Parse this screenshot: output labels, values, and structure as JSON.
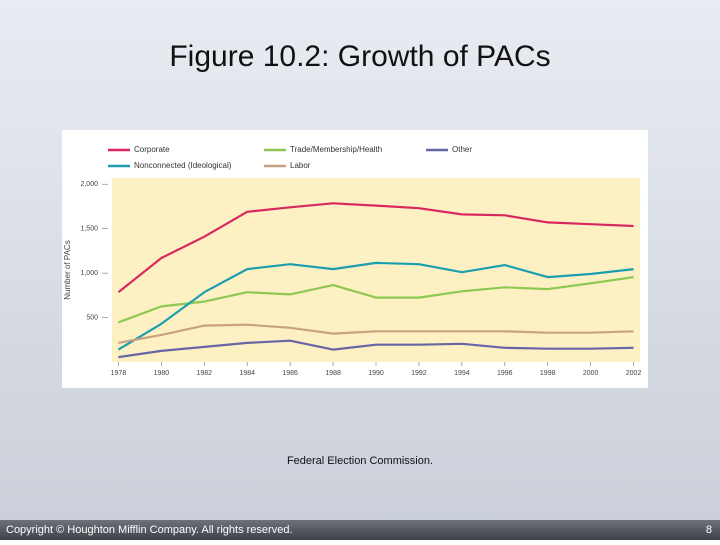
{
  "slide": {
    "title": "Figure 10.2: Growth of PACs",
    "source": "Federal Election Commission.",
    "footer": "Copyright © Houghton Mifflin Company. All rights reserved.",
    "page": 8
  },
  "chart_data": {
    "type": "line",
    "y_label": "Number of PACs",
    "x": [
      1978,
      1980,
      1982,
      1984,
      1986,
      1988,
      1990,
      1992,
      1994,
      1996,
      1998,
      2000,
      2002
    ],
    "series": [
      {
        "name": "Corporate",
        "color": "#d9285f",
        "values": [
          785,
          1170,
          1410,
          1690,
          1740,
          1785,
          1760,
          1730,
          1660,
          1650,
          1570,
          1550,
          1530
        ]
      },
      {
        "name": "Trade/Membership/Health",
        "color": "#8dc852",
        "values": [
          445,
          625,
          680,
          785,
          760,
          865,
          725,
          725,
          795,
          840,
          820,
          885,
          955
        ]
      },
      {
        "name": "Other",
        "color": "#6666a6",
        "values": [
          55,
          125,
          170,
          215,
          240,
          140,
          195,
          195,
          205,
          160,
          150,
          150,
          160
        ]
      },
      {
        "name": "Nonconnected (Ideological)",
        "color": "#1b9fb0",
        "values": [
          140,
          430,
          785,
          1045,
          1100,
          1045,
          1115,
          1100,
          1010,
          1090,
          955,
          990,
          1045
        ]
      },
      {
        "name": "Labor",
        "color": "#c8a283",
        "values": [
          215,
          305,
          410,
          420,
          385,
          320,
          345,
          345,
          345,
          345,
          330,
          330,
          345
        ]
      }
    ],
    "xlim": [
      1977.7,
      2002.3
    ],
    "xticks": [
      1978,
      1980,
      1982,
      1984,
      1986,
      1988,
      1990,
      1992,
      1994,
      1996,
      1998,
      2000,
      2002
    ],
    "ylim": [
      0,
      2070
    ],
    "yticks": [
      500,
      {
        "value": 1000,
        "label": "1,000"
      },
      {
        "value": 1500,
        "label": "1,500"
      },
      {
        "value": 2000,
        "label": "2,000"
      }
    ],
    "grid": false
  }
}
